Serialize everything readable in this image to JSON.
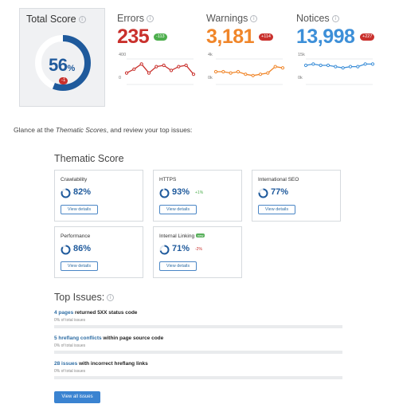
{
  "total_score": {
    "title": "Total Score",
    "value": "56",
    "unit": "%",
    "delta": "-1",
    "fraction": 0.56,
    "color": "#1f5a9c"
  },
  "metrics": [
    {
      "id": "errors",
      "title": "Errors",
      "value": "235",
      "badge": "-113",
      "badge_color": "#4cae4c",
      "color": "#c9302c",
      "y_top": "400",
      "y_bottom": "0",
      "trend": [
        0.55,
        0.4,
        0.2,
        0.55,
        0.3,
        0.25,
        0.45,
        0.3,
        0.25,
        0.6
      ]
    },
    {
      "id": "warnings",
      "title": "Warnings",
      "value": "3,181",
      "badge": "+114",
      "badge_color": "#c9302c",
      "color": "#f0862a",
      "y_top": "4k",
      "y_bottom": "0k",
      "trend": [
        0.5,
        0.5,
        0.55,
        0.5,
        0.6,
        0.65,
        0.6,
        0.55,
        0.3,
        0.35
      ]
    },
    {
      "id": "notices",
      "title": "Notices",
      "value": "13,998",
      "badge": "+227",
      "badge_color": "#c9302c",
      "color": "#3d8fd8",
      "y_top": "15k",
      "y_bottom": "0k",
      "trend": [
        0.25,
        0.2,
        0.25,
        0.25,
        0.3,
        0.35,
        0.3,
        0.3,
        0.2,
        0.2
      ]
    }
  ],
  "intro": {
    "before": "Glance at the ",
    "em": "Thematic Scores",
    "after": ", and review your top issues:"
  },
  "thematic": {
    "heading": "Thematic Score",
    "button_label": "View details",
    "cards": [
      {
        "name": "Crawlability",
        "pct": "82%",
        "fraction": 0.82,
        "delta": "",
        "delta_color": ""
      },
      {
        "name": "HTTPS",
        "pct": "93%",
        "fraction": 0.93,
        "delta": "+1%",
        "delta_color": "#4cae4c"
      },
      {
        "name": "International SEO",
        "pct": "77%",
        "fraction": 0.77,
        "delta": "",
        "delta_color": ""
      },
      {
        "name": "Performance",
        "pct": "86%",
        "fraction": 0.86,
        "delta": "",
        "delta_color": ""
      },
      {
        "name": "Internal Linking",
        "pct": "71%",
        "fraction": 0.71,
        "delta": "-2%",
        "delta_color": "#c9302c",
        "tag": "new"
      }
    ]
  },
  "issues": {
    "heading": "Top Issues:",
    "items": [
      {
        "link": "4 pages",
        "text": " returned 5XX status code",
        "sub": "0% of total issues"
      },
      {
        "link": "5 hreflang conflicts",
        "text": " within page source code",
        "sub": "0% of total issues"
      },
      {
        "link": "28 issues",
        "text": " with incorrect hreflang links",
        "sub": "0% of total issues"
      }
    ],
    "all_button": "View all issues"
  }
}
